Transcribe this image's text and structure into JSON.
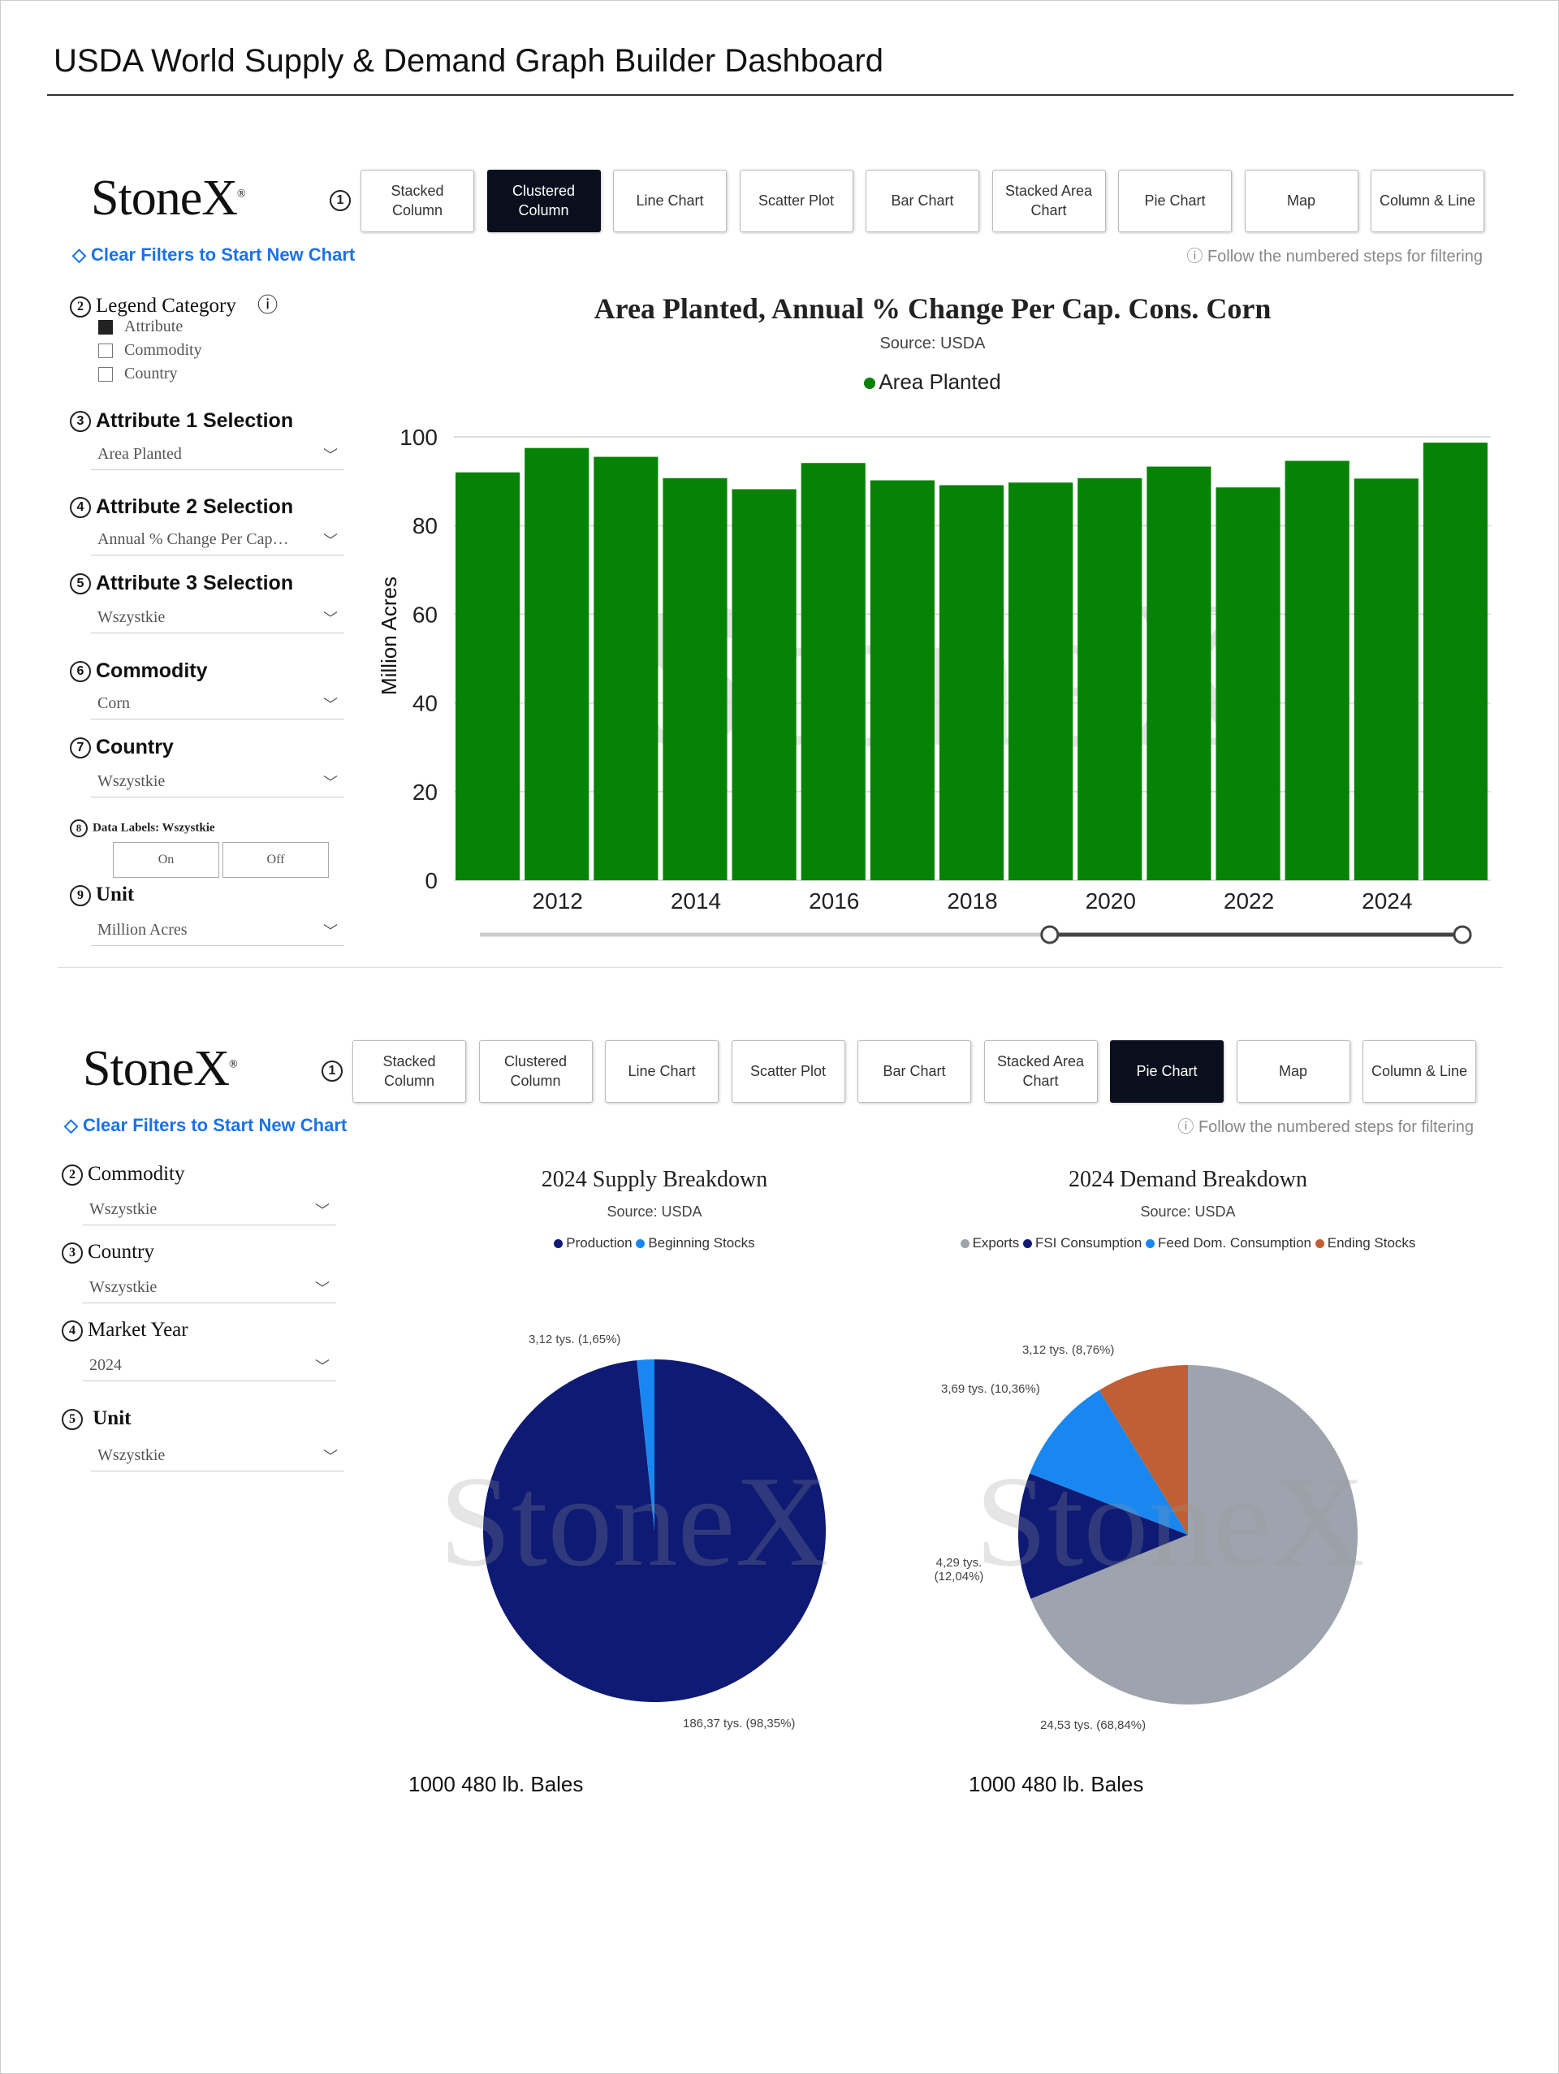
{
  "title": "USDA World Supply & Demand Graph Builder Dashboard",
  "logo": "StoneX",
  "chart_types": [
    "Stacked Column",
    "Clustered Column",
    "Line Chart",
    "Scatter Plot",
    "Bar Chart",
    "Stacked Area Chart",
    "Pie Chart",
    "Map",
    "Column & Line"
  ],
  "clear_filters": "Clear Filters to Start New Chart",
  "follow_steps": "Follow the numbered steps for filtering",
  "panel1": {
    "active_chart": "Clustered Column",
    "legend_category": {
      "label": "Legend Category",
      "options": [
        "Attribute",
        "Commodity",
        "Country"
      ],
      "selected": "Attribute"
    },
    "attr1": {
      "label": "Attribute 1 Selection",
      "value": "Area Planted"
    },
    "attr2": {
      "label": "Attribute 2 Selection",
      "value": "Annual % Change Per Cap…"
    },
    "attr3": {
      "label": "Attribute 3 Selection",
      "value": "Wszystkie"
    },
    "commodity": {
      "label": "Commodity",
      "value": "Corn"
    },
    "country": {
      "label": "Country",
      "value": "Wszystkie"
    },
    "data_labels": {
      "label": "Data Labels: Wszystkie",
      "on": "On",
      "off": "Off"
    },
    "unit": {
      "label": "Unit",
      "value": "Million Acres"
    }
  },
  "panel2": {
    "active_chart": "Pie Chart",
    "commodity": {
      "label": "Commodity",
      "value": "Wszystkie"
    },
    "country": {
      "label": "Country",
      "value": "Wszystkie"
    },
    "market_year": {
      "label": "Market Year",
      "value": "2024"
    },
    "unit": {
      "label": "Unit",
      "value": "Wszystkie"
    }
  },
  "chart_data": [
    {
      "type": "bar",
      "title": "Area Planted, Annual % Change Per Cap. Cons. Corn",
      "subtitle": "Source: USDA",
      "legend": [
        "Area Planted"
      ],
      "color": "#068206",
      "ylabel": "Million Acres",
      "ylim": [
        0,
        100
      ],
      "yticks": [
        "0",
        "20",
        "40",
        "60",
        "80",
        "100"
      ],
      "xticks": [
        "2012",
        "2014",
        "2016",
        "2018",
        "2020",
        "2022",
        "2024"
      ],
      "categories": [
        2011,
        2012,
        2013,
        2014,
        2015,
        2016,
        2017,
        2018,
        2019,
        2020,
        2021,
        2022,
        2023,
        2024,
        2025
      ],
      "values": [
        92.0,
        97.5,
        95.5,
        90.7,
        88.2,
        94.1,
        90.2,
        89.1,
        89.7,
        90.7,
        93.3,
        88.6,
        94.6,
        90.6,
        98.7
      ],
      "range_slider": [
        0.58,
        1.0
      ]
    },
    {
      "type": "pie",
      "title": "2024 Supply Breakdown",
      "subtitle": "Source: USDA",
      "units": "1000 480 lb. Bales",
      "slices": [
        {
          "name": "Production",
          "value": 186.37,
          "pct": 98.35,
          "label": "186,37 tys. (98,35%)",
          "color": "#0e1a73"
        },
        {
          "name": "Beginning Stocks",
          "value": 3.12,
          "pct": 1.65,
          "label": "3,12 tys. (1,65%)",
          "color": "#1a87f0"
        }
      ]
    },
    {
      "type": "pie",
      "title": "2024 Demand Breakdown",
      "subtitle": "Source: USDA",
      "units": "1000 480 lb. Bales",
      "slices": [
        {
          "name": "Exports",
          "value": 24.53,
          "pct": 68.84,
          "label": "24,53 tys. (68,84%)",
          "color": "#9ea4ad"
        },
        {
          "name": "FSI Consumption",
          "value": 4.29,
          "pct": 12.04,
          "label": "4,29 tys. (12,04%)",
          "color": "#0e1a73"
        },
        {
          "name": "Feed Dom. Consumption",
          "value": 3.69,
          "pct": 10.36,
          "label": "3,69 tys. (10,36%)",
          "color": "#1a87f0"
        },
        {
          "name": "Ending Stocks",
          "value": 3.12,
          "pct": 8.76,
          "label": "3,12 tys. (8,76%)",
          "color": "#c05f33"
        }
      ]
    }
  ]
}
